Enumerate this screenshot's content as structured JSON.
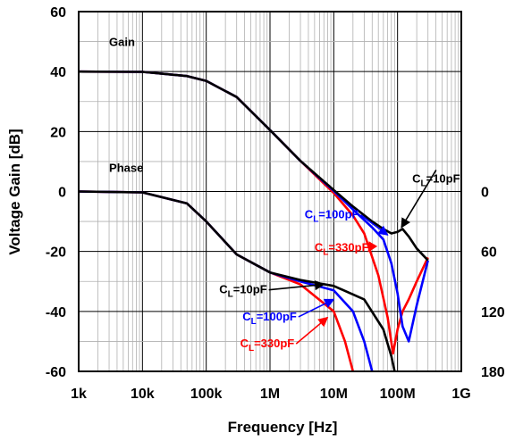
{
  "chart_data": {
    "type": "line",
    "title": "",
    "xlabel": "Frequency [Hz]",
    "ylabel": "Voltage Gain [dB]",
    "x_scale": "log",
    "xlim": [
      1000,
      1000000000
    ],
    "ylim": [
      -60,
      60
    ],
    "x_ticks": [
      {
        "value": 1000,
        "label": "1k"
      },
      {
        "value": 10000,
        "label": "10k"
      },
      {
        "value": 100000,
        "label": "100k"
      },
      {
        "value": 1000000,
        "label": "1M"
      },
      {
        "value": 10000000,
        "label": "10M"
      },
      {
        "value": 100000000,
        "label": "100M"
      },
      {
        "value": 1000000000,
        "label": "1G"
      }
    ],
    "y_ticks": [
      {
        "value": 60,
        "label": "60"
      },
      {
        "value": 40,
        "label": "40"
      },
      {
        "value": 20,
        "label": "20"
      },
      {
        "value": 0,
        "label": "0"
      },
      {
        "value": -20,
        "label": "-20"
      },
      {
        "value": -40,
        "label": "-40"
      },
      {
        "value": -60,
        "label": "-60"
      }
    ],
    "y2_ticks": [
      {
        "value": 0,
        "label": "0"
      },
      {
        "value": 60,
        "label": "60"
      },
      {
        "value": 120,
        "label": "120"
      },
      {
        "value": 180,
        "label": "180"
      }
    ],
    "y2lim": [
      -180,
      180
    ],
    "grid": true,
    "region_labels": [
      {
        "text": "Gain",
        "x": 3000,
        "y": 50
      },
      {
        "text": "Phase",
        "x": 3000,
        "y": 8
      }
    ],
    "series": [
      {
        "group": "gain",
        "cl": "330pF",
        "color": "#ff0000",
        "x": [
          1000,
          10000,
          50000,
          100000,
          300000,
          1000000,
          3000000,
          10000000,
          20000000,
          30000000,
          50000000,
          70000000,
          85000000,
          100000000,
          120000000,
          150000000,
          200000000,
          300000000
        ],
        "y": [
          40,
          39.9,
          38.5,
          36.9,
          31.5,
          20.5,
          10.2,
          -0.5,
          -8,
          -14,
          -28,
          -42,
          -54,
          -46,
          -40,
          -36,
          -30,
          -22
        ]
      },
      {
        "group": "gain",
        "cl": "100pF",
        "color": "#0000ff",
        "x": [
          1000,
          10000,
          50000,
          100000,
          300000,
          1000000,
          3000000,
          10000000,
          20000000,
          40000000,
          60000000,
          80000000,
          100000000,
          120000000,
          150000000,
          200000000,
          300000000
        ],
        "y": [
          40,
          39.9,
          38.5,
          36.9,
          31.5,
          20.5,
          10.2,
          0.2,
          -6,
          -12,
          -16,
          -24,
          -34,
          -45,
          -50,
          -38,
          -23
        ]
      },
      {
        "group": "gain",
        "cl": "10pF",
        "color": "#000000",
        "x": [
          1000,
          10000,
          50000,
          100000,
          300000,
          1000000,
          3000000,
          10000000,
          20000000,
          40000000,
          60000000,
          80000000,
          100000000,
          120000000,
          150000000,
          200000000,
          300000000
        ],
        "y": [
          40,
          39.9,
          38.5,
          36.9,
          31.5,
          20.5,
          10.2,
          0.5,
          -5,
          -10,
          -12.5,
          -14,
          -13.5,
          -12.5,
          -15,
          -19,
          -23
        ]
      },
      {
        "group": "phase",
        "cl": "330pF",
        "color": "#ff0000",
        "x": [
          1000,
          10000,
          50000,
          100000,
          300000,
          1000000,
          3000000,
          10000000,
          15000000,
          20000000
        ],
        "y": [
          0,
          -0.3,
          -4,
          -10,
          -21,
          -27,
          -31,
          -40,
          -50,
          -60
        ]
      },
      {
        "group": "phase",
        "cl": "100pF",
        "color": "#0000ff",
        "x": [
          1000,
          10000,
          50000,
          100000,
          300000,
          1000000,
          3000000,
          10000000,
          20000000,
          30000000,
          40000000
        ],
        "y": [
          0,
          -0.3,
          -4,
          -10,
          -21,
          -27,
          -30,
          -33,
          -40,
          -50,
          -60
        ]
      },
      {
        "group": "phase",
        "cl": "10pF",
        "color": "#000000",
        "x": [
          1000,
          10000,
          50000,
          100000,
          300000,
          1000000,
          3000000,
          10000000,
          30000000,
          60000000,
          80000000,
          90000000
        ],
        "y": [
          0,
          -0.3,
          -4,
          -10,
          -21,
          -27,
          -29.5,
          -31.5,
          -36,
          -46,
          -55,
          -60
        ]
      }
    ],
    "annotations": [
      {
        "text": "C",
        "sub": "L",
        "rest": "=10pF",
        "color": "#000000",
        "x": 170000000,
        "y": 3,
        "arrow_to": [
          115000000,
          -12
        ]
      },
      {
        "text": "C",
        "sub": "L",
        "rest": "=100pF",
        "color": "#0000ff",
        "x": 3500000,
        "y": -9,
        "arrow_to": [
          70000000,
          -14.5
        ]
      },
      {
        "text": "C",
        "sub": "L",
        "rest": "=330pF",
        "color": "#ff0000",
        "x": 5000000,
        "y": -20,
        "arrow_to": [
          35000000,
          -20
        ]
      },
      {
        "text": "C",
        "sub": "L",
        "rest": "=10pF",
        "color": "#000000",
        "x": 160000,
        "y": -34,
        "arrow_to": [
          7000000,
          -31
        ]
      },
      {
        "text": "C",
        "sub": "L",
        "rest": "=100pF",
        "color": "#0000ff",
        "x": 370000,
        "y": -43,
        "arrow_to": [
          10000000,
          -36
        ]
      },
      {
        "text": "C",
        "sub": "L",
        "rest": "=330pF",
        "color": "#ff0000",
        "x": 340000,
        "y": -52,
        "arrow_to": [
          8000000,
          -42
        ]
      }
    ]
  }
}
